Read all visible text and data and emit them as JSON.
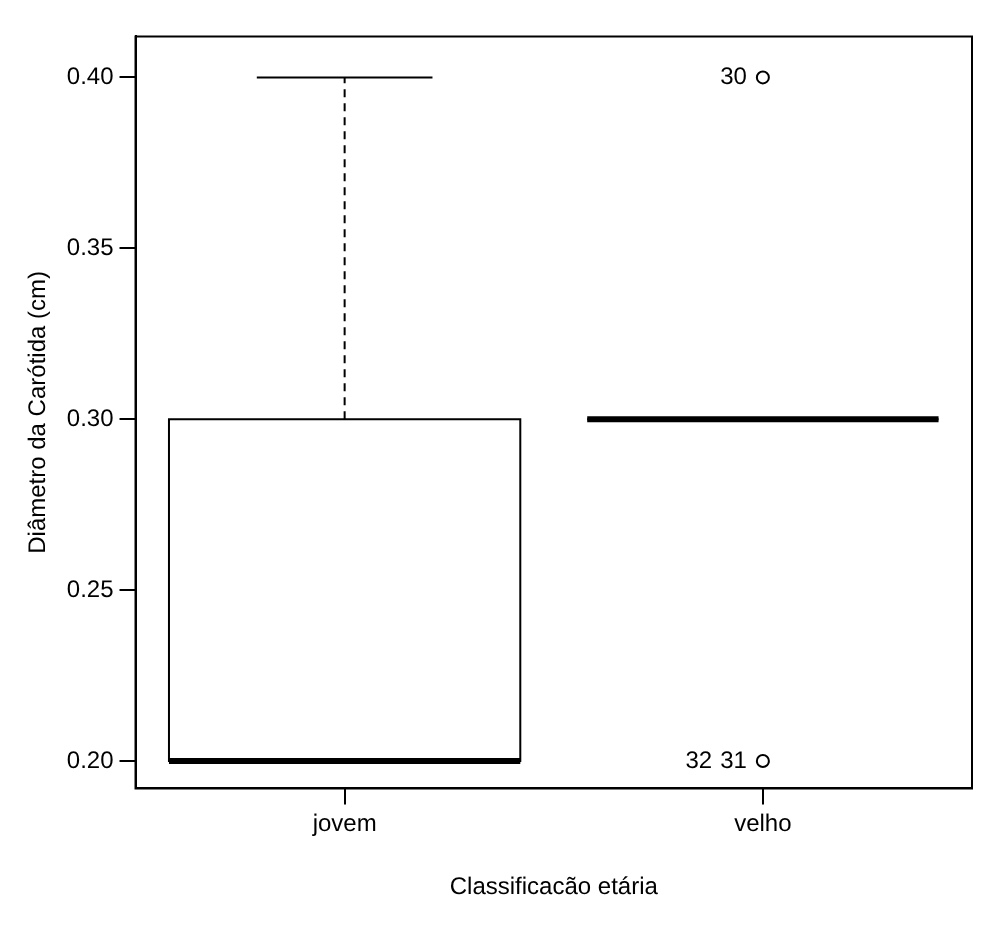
{
  "chart_data": {
    "type": "box",
    "xlabel": "Classificacão etária",
    "ylabel": "Diâmetro da Carótida (cm)",
    "categories": [
      "jovem",
      "velho"
    ],
    "boxes": [
      {
        "low": 0.2,
        "q1": 0.2,
        "median": 0.2,
        "q3": 0.3,
        "high": 0.4
      },
      {
        "low": 0.3,
        "q1": 0.3,
        "median": 0.3,
        "q3": 0.3,
        "high": 0.3,
        "outliers": [
          0.4,
          0.2
        ]
      }
    ],
    "ylim": [
      0.192,
      0.412
    ],
    "yticks": [
      {
        "value": 0.2,
        "label": "0.20"
      },
      {
        "value": 0.25,
        "label": "0.25"
      },
      {
        "value": 0.3,
        "label": "0.30"
      },
      {
        "value": 0.35,
        "label": "0.35"
      },
      {
        "value": 0.4,
        "label": "0.40"
      }
    ],
    "grid": false,
    "legend": false,
    "annotations": [
      "30",
      "31",
      "32"
    ]
  }
}
